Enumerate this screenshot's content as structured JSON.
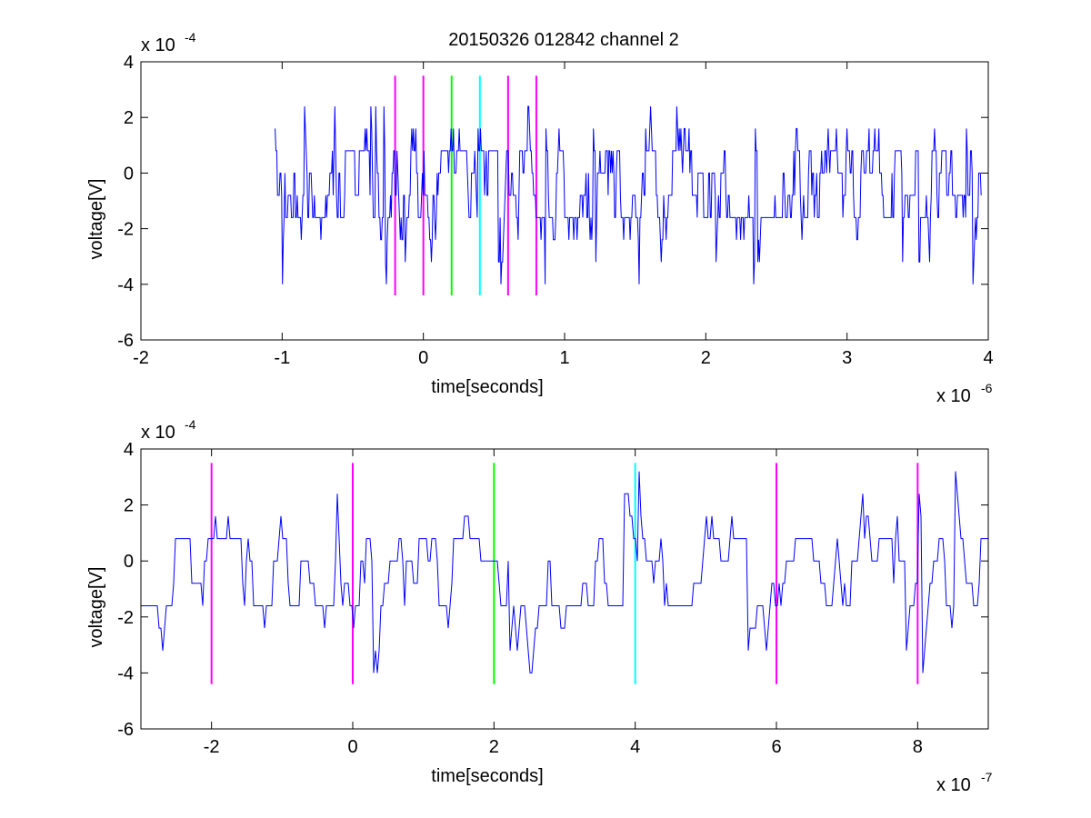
{
  "figure_title": "20150326 012842 channel 2",
  "chart_data": [
    {
      "type": "line",
      "title": "20150326 012842 channel 2",
      "xlabel": "time[seconds]",
      "ylabel": "voltage[V]",
      "x_exponent_label": "x 10",
      "x_exponent": "-6",
      "y_exponent_label": "x 10",
      "y_exponent": "-4",
      "xlim": [
        -2,
        4
      ],
      "ylim": [
        -6,
        4
      ],
      "xticks": [
        -2,
        -1,
        0,
        1,
        2,
        3,
        4
      ],
      "xtick_labels": [
        "-2",
        "-1",
        "0",
        "1",
        "2",
        "3",
        "4"
      ],
      "yticks": [
        -6,
        -4,
        -2,
        0,
        2,
        4
      ],
      "ytick_labels": [
        "-6",
        "-4",
        "-2",
        "0",
        "2",
        "4"
      ],
      "grid": false,
      "series": [
        {
          "color": "#0000ff",
          "x_start": -1.05,
          "x_end": 3.95,
          "quantization_step": 0.8,
          "seed": 12345,
          "noise_min": -4.0,
          "noise_max": 2.4
        }
      ],
      "markers": [
        {
          "x": -0.2,
          "color": "#ff00ff",
          "y_range": [
            -4.4,
            3.5
          ]
        },
        {
          "x": 0.0,
          "color": "#ff00ff",
          "y_range": [
            -4.4,
            3.5
          ]
        },
        {
          "x": 0.2,
          "color": "#00ff00",
          "y_range": [
            -4.4,
            3.5
          ]
        },
        {
          "x": 0.4,
          "color": "#00ffff",
          "y_range": [
            -4.4,
            3.5
          ]
        },
        {
          "x": 0.6,
          "color": "#ff00ff",
          "y_range": [
            -4.4,
            3.5
          ]
        },
        {
          "x": 0.8,
          "color": "#ff00ff",
          "y_range": [
            -4.4,
            3.5
          ]
        }
      ]
    },
    {
      "type": "line",
      "title": "",
      "xlabel": "time[seconds]",
      "ylabel": "voltage[V]",
      "x_exponent_label": "x 10",
      "x_exponent": "-7",
      "y_exponent_label": "x 10",
      "y_exponent": "-4",
      "xlim": [
        -3,
        9
      ],
      "ylim": [
        -6,
        4
      ],
      "xticks": [
        -2,
        0,
        2,
        4,
        6,
        8
      ],
      "xtick_labels": [
        "-2",
        "0",
        "2",
        "4",
        "6",
        "8"
      ],
      "yticks": [
        -6,
        -4,
        -2,
        0,
        2,
        4
      ],
      "ytick_labels": [
        "-6",
        "-4",
        "-2",
        "0",
        "2",
        "4"
      ],
      "grid": false,
      "series": [
        {
          "color": "#0000ff",
          "x_start": -3,
          "x_end": 9,
          "quantization_step": 0.8,
          "seed": 6789,
          "noise_min": -4.0,
          "noise_max": 3.2
        }
      ],
      "markers": [
        {
          "x": -2,
          "color": "#ff00ff",
          "y_range": [
            -4.4,
            3.5
          ]
        },
        {
          "x": 0,
          "color": "#ff00ff",
          "y_range": [
            -4.4,
            3.5
          ]
        },
        {
          "x": 2,
          "color": "#00ff00",
          "y_range": [
            -4.4,
            3.5
          ]
        },
        {
          "x": 4,
          "color": "#00ffff",
          "y_range": [
            -4.4,
            3.5
          ]
        },
        {
          "x": 6,
          "color": "#ff00ff",
          "y_range": [
            -4.4,
            3.5
          ]
        },
        {
          "x": 8,
          "color": "#ff00ff",
          "y_range": [
            -4.4,
            3.5
          ]
        }
      ]
    }
  ]
}
